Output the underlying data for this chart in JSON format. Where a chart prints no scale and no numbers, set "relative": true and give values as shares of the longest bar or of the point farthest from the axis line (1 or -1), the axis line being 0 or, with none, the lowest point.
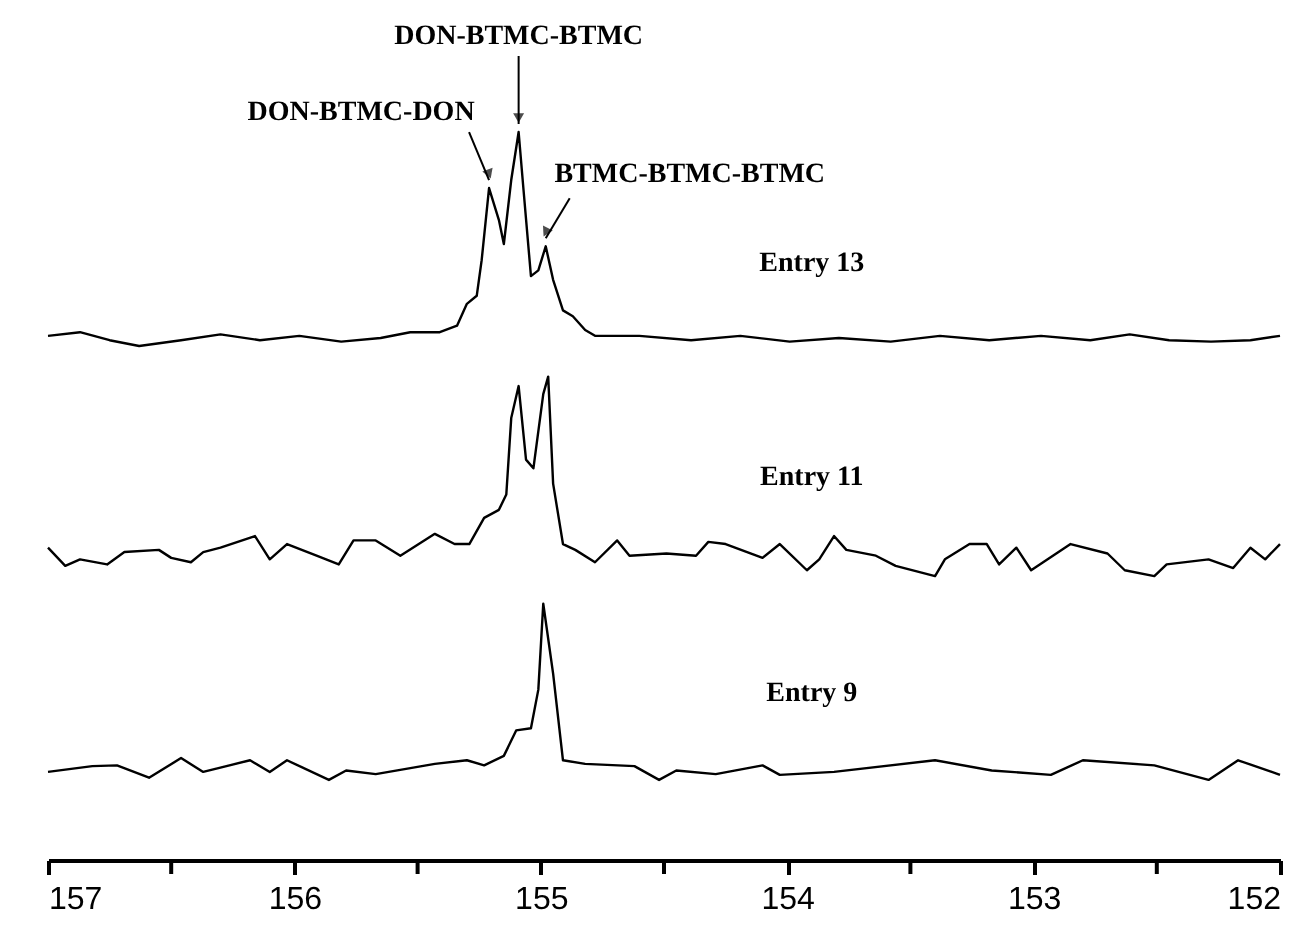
{
  "chart_data": {
    "type": "line",
    "relative": true,
    "grid": false,
    "line_style": "solid",
    "marker": "none",
    "xlim": [
      157,
      152
    ],
    "xticks": [
      157,
      {
        "value": 156.5,
        "label": null
      },
      156,
      {
        "value": 155.5,
        "label": null
      },
      155,
      {
        "value": 154.5,
        "label": null
      },
      154,
      {
        "value": 153.5,
        "label": null
      },
      153,
      {
        "value": 152.5,
        "label": null
      },
      152
    ],
    "annotations": [
      {
        "text": "DON-BTMC-DON",
        "x": 155.21,
        "y": 0.923
      },
      {
        "text": "DON-BTMC-BTMC",
        "x": 155.09,
        "y": 1.0
      },
      {
        "text": "BTMC-BTMC-BTMC",
        "x": 154.98,
        "y": 0.843
      }
    ],
    "series": [
      {
        "name": "Entry 13",
        "color": "#000000",
        "x": [
          157.0,
          156.87,
          156.75,
          156.63,
          156.46,
          156.3,
          156.14,
          155.98,
          155.81,
          155.65,
          155.53,
          155.41,
          155.34,
          155.3,
          155.26,
          155.24,
          155.21,
          155.17,
          155.15,
          155.12,
          155.09,
          155.07,
          155.04,
          155.01,
          154.98,
          154.95,
          154.91,
          154.87,
          154.82,
          154.78,
          154.6,
          154.39,
          154.19,
          153.99,
          153.79,
          153.58,
          153.38,
          153.18,
          152.97,
          152.77,
          152.61,
          152.45,
          152.28,
          152.12,
          152.0
        ],
        "values": [
          0.72,
          0.725,
          0.714,
          0.706,
          0.714,
          0.722,
          0.714,
          0.72,
          0.712,
          0.717,
          0.725,
          0.725,
          0.734,
          0.764,
          0.775,
          0.824,
          0.923,
          0.879,
          0.846,
          0.934,
          1.0,
          0.92,
          0.802,
          0.81,
          0.843,
          0.797,
          0.755,
          0.747,
          0.728,
          0.72,
          0.72,
          0.714,
          0.72,
          0.712,
          0.717,
          0.712,
          0.72,
          0.714,
          0.72,
          0.714,
          0.722,
          0.714,
          0.712,
          0.714,
          0.72
        ]
      },
      {
        "name": "Entry 11",
        "color": "#000000",
        "x": [
          157.0,
          156.93,
          156.87,
          156.76,
          156.69,
          156.55,
          156.5,
          156.42,
          156.37,
          156.3,
          156.16,
          156.1,
          156.03,
          155.91,
          155.82,
          155.76,
          155.67,
          155.57,
          155.43,
          155.35,
          155.29,
          155.23,
          155.17,
          155.14,
          155.12,
          155.09,
          155.06,
          155.03,
          154.99,
          154.97,
          154.95,
          154.91,
          154.86,
          154.78,
          154.69,
          154.64,
          154.49,
          154.37,
          154.32,
          154.25,
          154.1,
          154.03,
          153.92,
          153.87,
          153.81,
          153.76,
          153.64,
          153.56,
          153.4,
          153.36,
          153.26,
          153.19,
          153.14,
          153.07,
          153.01,
          152.85,
          152.7,
          152.63,
          152.51,
          152.46,
          152.29,
          152.19,
          152.12,
          152.06,
          152.0
        ],
        "values": [
          0.429,
          0.404,
          0.413,
          0.406,
          0.423,
          0.426,
          0.415,
          0.409,
          0.423,
          0.429,
          0.445,
          0.413,
          0.434,
          0.418,
          0.406,
          0.439,
          0.439,
          0.418,
          0.448,
          0.434,
          0.434,
          0.47,
          0.481,
          0.502,
          0.607,
          0.651,
          0.55,
          0.538,
          0.64,
          0.664,
          0.517,
          0.434,
          0.426,
          0.409,
          0.439,
          0.418,
          0.421,
          0.418,
          0.437,
          0.434,
          0.415,
          0.434,
          0.398,
          0.413,
          0.445,
          0.426,
          0.418,
          0.404,
          0.39,
          0.413,
          0.434,
          0.434,
          0.406,
          0.429,
          0.398,
          0.434,
          0.421,
          0.398,
          0.39,
          0.406,
          0.413,
          0.401,
          0.429,
          0.413,
          0.434
        ]
      },
      {
        "name": "Entry 9",
        "color": "#000000",
        "x": [
          157.0,
          156.82,
          156.72,
          156.59,
          156.46,
          156.37,
          156.18,
          156.1,
          156.03,
          155.86,
          155.79,
          155.67,
          155.43,
          155.3,
          155.23,
          155.15,
          155.1,
          155.04,
          155.01,
          154.99,
          154.95,
          154.91,
          154.82,
          154.62,
          154.52,
          154.45,
          154.29,
          154.1,
          154.03,
          153.81,
          153.4,
          153.17,
          152.93,
          152.8,
          152.51,
          152.29,
          152.17,
          152.0
        ],
        "values": [
          0.121,
          0.129,
          0.13,
          0.113,
          0.14,
          0.121,
          0.137,
          0.121,
          0.137,
          0.11,
          0.123,
          0.118,
          0.132,
          0.137,
          0.13,
          0.143,
          0.178,
          0.181,
          0.234,
          0.352,
          0.256,
          0.137,
          0.132,
          0.129,
          0.11,
          0.123,
          0.118,
          0.13,
          0.117,
          0.121,
          0.137,
          0.123,
          0.117,
          0.137,
          0.13,
          0.11,
          0.137,
          0.117
        ]
      }
    ]
  }
}
